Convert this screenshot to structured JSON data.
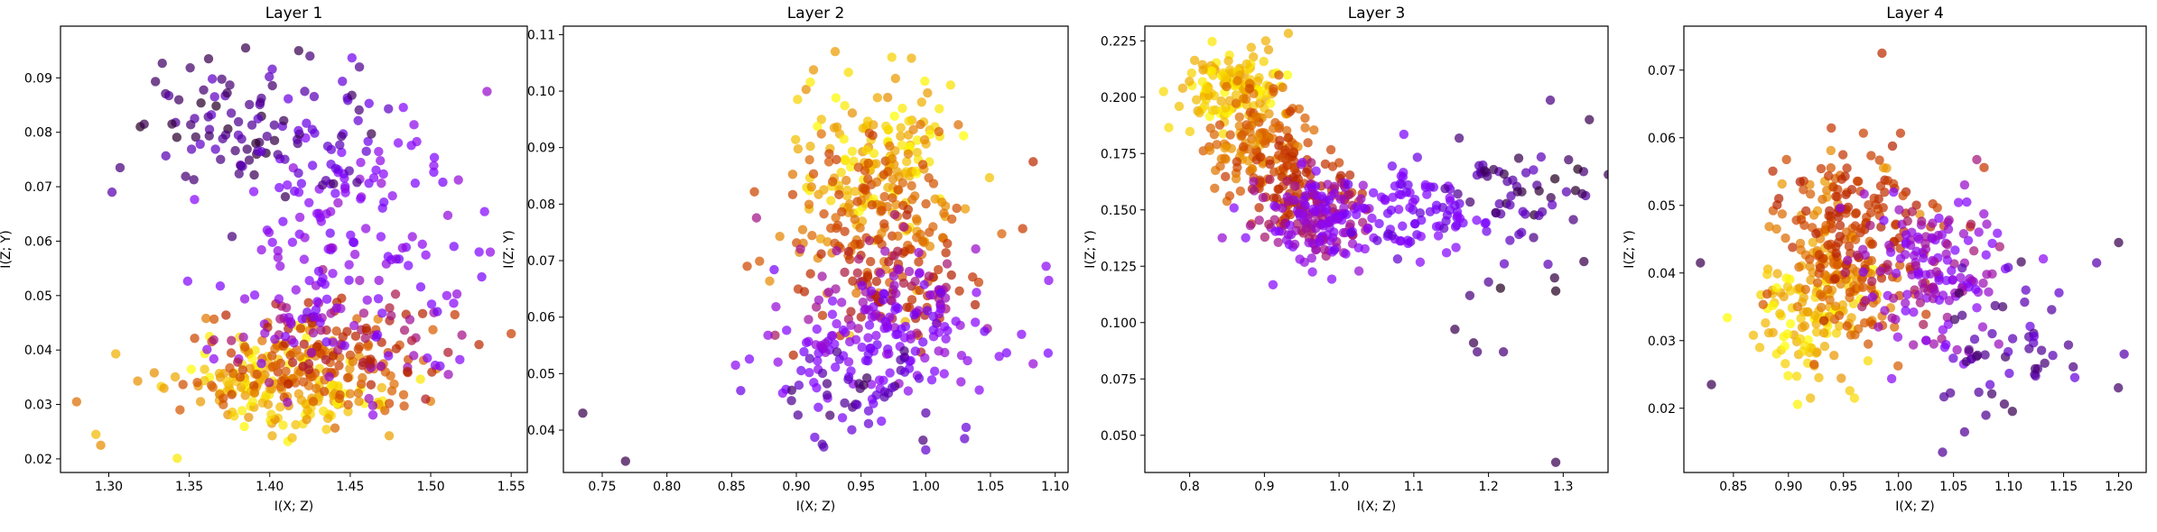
{
  "chart_data": [
    {
      "type": "scatter",
      "title": "Layer 1",
      "xlabel": "I(X; Z)",
      "ylabel": "I(Z; Y)",
      "xlim": [
        1.27,
        1.56
      ],
      "ylim": [
        0.0175,
        0.0995
      ],
      "xticks": [
        1.3,
        1.35,
        1.4,
        1.45,
        1.5,
        1.55
      ],
      "xtick_labels": [
        "1.30",
        "1.35",
        "1.40",
        "1.45",
        "1.50",
        "1.55"
      ],
      "yticks": [
        0.02,
        0.03,
        0.04,
        0.05,
        0.06,
        0.07,
        0.08,
        0.09
      ],
      "ytick_labels": [
        "0.02",
        "0.03",
        "0.04",
        "0.05",
        "0.06",
        "0.07",
        "0.08",
        "0.09"
      ],
      "grid": false,
      "colormap": "gnuplot",
      "clusters": [
        {
          "cx": 1.405,
          "cy": 0.033,
          "sx": 0.032,
          "sy": 0.0045,
          "n": 170,
          "c": [
            0.82,
            1.0
          ]
        },
        {
          "cx": 1.425,
          "cy": 0.036,
          "sx": 0.035,
          "sy": 0.0045,
          "n": 120,
          "c": [
            0.6,
            0.8
          ]
        },
        {
          "cx": 1.44,
          "cy": 0.042,
          "sx": 0.035,
          "sy": 0.005,
          "n": 100,
          "c": [
            0.3,
            0.55
          ]
        },
        {
          "cx": 1.45,
          "cy": 0.059,
          "sx": 0.04,
          "sy": 0.012,
          "n": 140,
          "c": [
            0.2,
            0.35
          ]
        },
        {
          "cx": 1.37,
          "cy": 0.081,
          "sx": 0.025,
          "sy": 0.006,
          "n": 60,
          "c": [
            0.02,
            0.15
          ]
        },
        {
          "cx": 1.43,
          "cy": 0.08,
          "sx": 0.02,
          "sy": 0.007,
          "n": 50,
          "c": [
            0.05,
            0.2
          ]
        }
      ],
      "points": [
        {
          "x": 1.385,
          "y": 0.0955,
          "c": 0.05
        },
        {
          "x": 1.418,
          "y": 0.095,
          "c": 0.05
        },
        {
          "x": 1.425,
          "y": 0.094,
          "c": 0.08
        },
        {
          "x": 1.362,
          "y": 0.0935,
          "c": 0.05
        },
        {
          "x": 1.322,
          "y": 0.0815,
          "c": 0.05
        },
        {
          "x": 1.302,
          "y": 0.069,
          "c": 0.12
        },
        {
          "x": 1.307,
          "y": 0.0735,
          "c": 0.08
        },
        {
          "x": 1.535,
          "y": 0.0875,
          "c": 0.35
        },
        {
          "x": 1.28,
          "y": 0.0305,
          "c": 0.75
        },
        {
          "x": 1.292,
          "y": 0.0245,
          "c": 0.9
        },
        {
          "x": 1.295,
          "y": 0.0225,
          "c": 0.82
        },
        {
          "x": 1.55,
          "y": 0.043,
          "c": 0.62
        },
        {
          "x": 1.537,
          "y": 0.058,
          "c": 0.32
        },
        {
          "x": 1.515,
          "y": 0.0465,
          "c": 0.6
        },
        {
          "x": 1.53,
          "y": 0.041,
          "c": 0.55
        },
        {
          "x": 1.51,
          "y": 0.05,
          "c": 0.3
        }
      ]
    },
    {
      "type": "scatter",
      "title": "Layer 2",
      "xlabel": "I(X; Z)",
      "ylabel": "I(Z; Y)",
      "xlim": [
        0.72,
        1.11
      ],
      "ylim": [
        0.0325,
        0.1115
      ],
      "xticks": [
        0.75,
        0.8,
        0.85,
        0.9,
        0.95,
        1.0,
        1.05,
        1.1
      ],
      "xtick_labels": [
        "0.75",
        "0.80",
        "0.85",
        "0.90",
        "0.95",
        "1.00",
        "1.05",
        "1.10"
      ],
      "yticks": [
        0.04,
        0.05,
        0.06,
        0.07,
        0.08,
        0.09,
        0.1,
        0.11
      ],
      "ytick_labels": [
        "0.04",
        "0.05",
        "0.06",
        "0.07",
        "0.08",
        "0.09",
        "0.10",
        "0.11"
      ],
      "grid": false,
      "colormap": "gnuplot",
      "clusters": [
        {
          "cx": 0.96,
          "cy": 0.088,
          "sx": 0.03,
          "sy": 0.008,
          "n": 150,
          "c": [
            0.82,
            1.0
          ]
        },
        {
          "cx": 0.965,
          "cy": 0.078,
          "sx": 0.035,
          "sy": 0.007,
          "n": 140,
          "c": [
            0.6,
            0.82
          ]
        },
        {
          "cx": 0.97,
          "cy": 0.066,
          "sx": 0.035,
          "sy": 0.006,
          "n": 110,
          "c": [
            0.35,
            0.6
          ]
        },
        {
          "cx": 0.965,
          "cy": 0.056,
          "sx": 0.04,
          "sy": 0.006,
          "n": 150,
          "c": [
            0.2,
            0.35
          ]
        },
        {
          "cx": 0.955,
          "cy": 0.046,
          "sx": 0.035,
          "sy": 0.004,
          "n": 40,
          "c": [
            0.05,
            0.18
          ]
        }
      ],
      "points": [
        {
          "x": 0.735,
          "y": 0.043,
          "c": 0.05
        },
        {
          "x": 0.768,
          "y": 0.0345,
          "c": 0.05
        },
        {
          "x": 0.93,
          "y": 0.107,
          "c": 0.85
        },
        {
          "x": 1.083,
          "y": 0.0875,
          "c": 0.55
        },
        {
          "x": 1.093,
          "y": 0.069,
          "c": 0.3
        },
        {
          "x": 1.095,
          "y": 0.0665,
          "c": 0.3
        },
        {
          "x": 0.853,
          "y": 0.0515,
          "c": 0.3
        },
        {
          "x": 0.857,
          "y": 0.047,
          "c": 0.18
        },
        {
          "x": 0.92,
          "y": 0.0375,
          "c": 0.12
        },
        {
          "x": 1.0,
          "y": 0.0365,
          "c": 0.15
        },
        {
          "x": 1.03,
          "y": 0.0385,
          "c": 0.15
        },
        {
          "x": 0.862,
          "y": 0.069,
          "c": 0.65
        }
      ]
    },
    {
      "type": "scatter",
      "title": "Layer 3",
      "xlabel": "I(X; Z)",
      "ylabel": "I(Z; Y)",
      "xlim": [
        0.74,
        1.36
      ],
      "ylim": [
        0.0335,
        0.2315
      ],
      "xticks": [
        0.8,
        0.9,
        1.0,
        1.1,
        1.2,
        1.3
      ],
      "xtick_labels": [
        "0.8",
        "0.9",
        "1.0",
        "1.1",
        "1.2",
        "1.3"
      ],
      "yticks": [
        0.05,
        0.075,
        0.1,
        0.125,
        0.15,
        0.175,
        0.2,
        0.225
      ],
      "ytick_labels": [
        "0.050",
        "0.075",
        "0.100",
        "0.125",
        "0.150",
        "0.175",
        "0.200",
        "0.225"
      ],
      "grid": false,
      "colormap": "gnuplot",
      "clusters": [
        {
          "cx": 0.86,
          "cy": 0.205,
          "sx": 0.03,
          "sy": 0.01,
          "n": 130,
          "c": [
            0.85,
            1.0
          ]
        },
        {
          "cx": 0.895,
          "cy": 0.183,
          "sx": 0.035,
          "sy": 0.012,
          "n": 120,
          "c": [
            0.65,
            0.85
          ]
        },
        {
          "cx": 0.94,
          "cy": 0.162,
          "sx": 0.035,
          "sy": 0.01,
          "n": 90,
          "c": [
            0.5,
            0.65
          ]
        },
        {
          "cx": 0.975,
          "cy": 0.145,
          "sx": 0.04,
          "sy": 0.01,
          "n": 180,
          "c": [
            0.25,
            0.45
          ]
        },
        {
          "cx": 1.1,
          "cy": 0.15,
          "sx": 0.05,
          "sy": 0.01,
          "n": 90,
          "c": [
            0.15,
            0.3
          ]
        },
        {
          "cx": 1.25,
          "cy": 0.155,
          "sx": 0.05,
          "sy": 0.013,
          "n": 60,
          "c": [
            0.02,
            0.15
          ]
        }
      ],
      "points": [
        {
          "x": 0.765,
          "y": 0.2025,
          "c": 0.95
        },
        {
          "x": 0.772,
          "y": 0.1865,
          "c": 0.95
        },
        {
          "x": 1.29,
          "y": 0.038,
          "c": 0.05
        },
        {
          "x": 1.29,
          "y": 0.114,
          "c": 0.02
        },
        {
          "x": 1.155,
          "y": 0.097,
          "c": 0.05
        },
        {
          "x": 1.18,
          "y": 0.091,
          "c": 0.05
        },
        {
          "x": 1.185,
          "y": 0.087,
          "c": 0.08
        },
        {
          "x": 1.22,
          "y": 0.087,
          "c": 0.08
        },
        {
          "x": 1.175,
          "y": 0.112,
          "c": 0.08
        },
        {
          "x": 1.2,
          "y": 0.118,
          "c": 0.1
        },
        {
          "x": 1.335,
          "y": 0.19,
          "c": 0.05
        }
      ]
    },
    {
      "type": "scatter",
      "title": "Layer 4",
      "xlabel": "I(X; Z)",
      "ylabel": "I(Z; Y)",
      "xlim": [
        0.805,
        1.225
      ],
      "ylim": [
        0.0105,
        0.0765
      ],
      "xticks": [
        0.85,
        0.9,
        0.95,
        1.0,
        1.05,
        1.1,
        1.15,
        1.2
      ],
      "xtick_labels": [
        "0.85",
        "0.90",
        "0.95",
        "1.00",
        "1.05",
        "1.10",
        "1.15",
        "1.20"
      ],
      "yticks": [
        0.02,
        0.03,
        0.04,
        0.05,
        0.06,
        0.07
      ],
      "ytick_labels": [
        "0.02",
        "0.03",
        "0.04",
        "0.05",
        "0.06",
        "0.07"
      ],
      "grid": false,
      "colormap": "gnuplot",
      "clusters": [
        {
          "cx": 0.92,
          "cy": 0.034,
          "sx": 0.025,
          "sy": 0.005,
          "n": 110,
          "c": [
            0.85,
            1.0
          ]
        },
        {
          "cx": 0.945,
          "cy": 0.042,
          "sx": 0.03,
          "sy": 0.006,
          "n": 150,
          "c": [
            0.65,
            0.85
          ]
        },
        {
          "cx": 0.97,
          "cy": 0.048,
          "sx": 0.035,
          "sy": 0.006,
          "n": 110,
          "c": [
            0.5,
            0.65
          ]
        },
        {
          "cx": 1.03,
          "cy": 0.04,
          "sx": 0.035,
          "sy": 0.006,
          "n": 160,
          "c": [
            0.25,
            0.45
          ]
        },
        {
          "cx": 1.1,
          "cy": 0.028,
          "sx": 0.04,
          "sy": 0.006,
          "n": 50,
          "c": [
            0.05,
            0.18
          ]
        }
      ],
      "points": [
        {
          "x": 0.985,
          "y": 0.0725,
          "c": 0.55
        },
        {
          "x": 0.82,
          "y": 0.0415,
          "c": 0.05
        },
        {
          "x": 0.83,
          "y": 0.0235,
          "c": 0.05
        },
        {
          "x": 1.2,
          "y": 0.0445,
          "c": 0.05
        },
        {
          "x": 1.205,
          "y": 0.028,
          "c": 0.12
        },
        {
          "x": 1.18,
          "y": 0.0415,
          "c": 0.12
        },
        {
          "x": 1.04,
          "y": 0.0135,
          "c": 0.1
        },
        {
          "x": 1.06,
          "y": 0.0165,
          "c": 0.1
        },
        {
          "x": 0.92,
          "y": 0.0215,
          "c": 0.9
        },
        {
          "x": 0.96,
          "y": 0.0215,
          "c": 0.95
        }
      ]
    }
  ]
}
